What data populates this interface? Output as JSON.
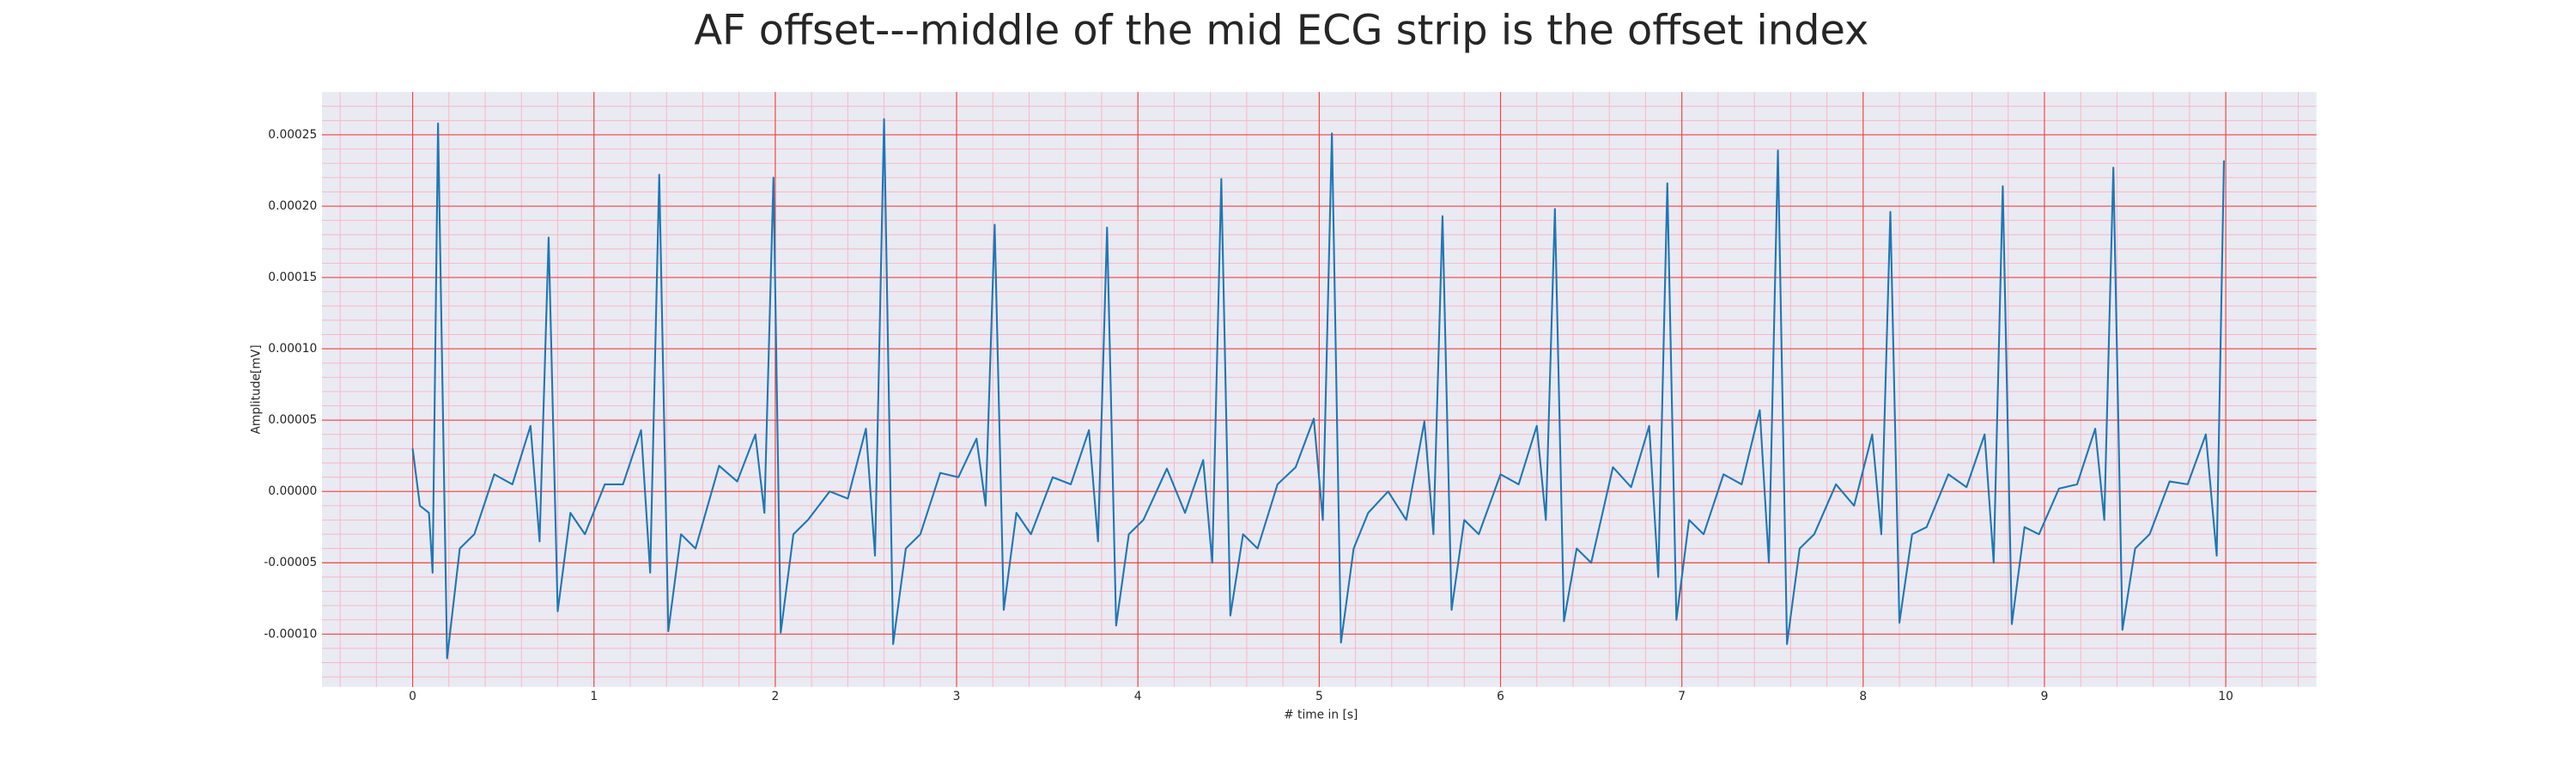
{
  "chart_data": {
    "type": "line",
    "title": "AF offset---middle of the mid ECG strip is the offset index",
    "x_label": "# time in [s]",
    "y_label": "Amplitude[mV]",
    "color": "#1f77b4",
    "grid": true,
    "xlim": [
      -0.5,
      10.5
    ],
    "ylim": [
      -0.000137,
      0.00028
    ],
    "xticks": [
      0,
      1,
      2,
      3,
      4,
      5,
      6,
      7,
      8,
      9,
      10
    ],
    "yticks": [
      {
        "value": -0.0001,
        "label": "-0.00010"
      },
      -5e-05,
      {
        "value": 0,
        "label": "0.00000"
      },
      5e-05,
      {
        "value": 0.0001,
        "label": "0.00010"
      },
      0.00015,
      {
        "value": 0.0002,
        "label": "0.00020"
      },
      0.00025
    ],
    "x": [
      0,
      0.04,
      0.09,
      0.11,
      0.14,
      0.19,
      0.26,
      0.34,
      0.45,
      0.55,
      0.65,
      0.7,
      0.75,
      0.8,
      0.87,
      0.95,
      1.06,
      1.16,
      1.26,
      1.31,
      1.36,
      1.41,
      1.48,
      1.56,
      1.69,
      1.79,
      1.89,
      1.94,
      1.99,
      2.03,
      2.1,
      2.18,
      2.3,
      2.4,
      2.5,
      2.55,
      2.6,
      2.65,
      2.72,
      2.8,
      2.91,
      3.01,
      3.11,
      3.16,
      3.21,
      3.26,
      3.33,
      3.41,
      3.53,
      3.63,
      3.73,
      3.78,
      3.83,
      3.88,
      3.95,
      4.03,
      4.16,
      4.26,
      4.36,
      4.41,
      4.46,
      4.51,
      4.58,
      4.66,
      4.77,
      4.87,
      4.97,
      5.02,
      5.07,
      5.12,
      5.19,
      5.27,
      5.38,
      5.48,
      5.58,
      5.63,
      5.68,
      5.73,
      5.8,
      5.88,
      6.0,
      6.1,
      6.2,
      6.25,
      6.3,
      6.35,
      6.42,
      6.5,
      6.62,
      6.72,
      6.82,
      6.87,
      6.92,
      6.97,
      7.04,
      7.12,
      7.23,
      7.33,
      7.43,
      7.48,
      7.53,
      7.58,
      7.65,
      7.73,
      7.85,
      7.95,
      8.05,
      8.1,
      8.15,
      8.2,
      8.27,
      8.35,
      8.47,
      8.57,
      8.67,
      8.72,
      8.77,
      8.82,
      8.89,
      8.97,
      9.08,
      9.18,
      9.28,
      9.33,
      9.38,
      9.43,
      9.5,
      9.58,
      9.69,
      9.79,
      9.89,
      9.95,
      9.99
    ],
    "values": [
      3e-05,
      -1e-05,
      -1.5e-05,
      -5.7e-05,
      0.000258,
      -0.000117,
      -4e-05,
      -3e-05,
      1.2e-05,
      5e-06,
      4.6e-05,
      -3.5e-05,
      0.000178,
      -8.4e-05,
      -1.5e-05,
      -3e-05,
      5e-06,
      5e-06,
      4.3e-05,
      -5.7e-05,
      0.000222,
      -9.8e-05,
      -3e-05,
      -4e-05,
      1.8e-05,
      7e-06,
      4e-05,
      -1.5e-05,
      0.00022,
      -9.9e-05,
      -3e-05,
      -2e-05,
      0,
      -5e-06,
      4.4e-05,
      -4.5e-05,
      0.000261,
      -0.000107,
      -4e-05,
      -3e-05,
      1.3e-05,
      1e-05,
      3.7e-05,
      -1e-05,
      0.000187,
      -8.3e-05,
      -1.5e-05,
      -3e-05,
      1e-05,
      5e-06,
      4.3e-05,
      -3.5e-05,
      0.000185,
      -9.4e-05,
      -3e-05,
      -2e-05,
      1.6e-05,
      -1.5e-05,
      2.2e-05,
      -5e-05,
      0.000219,
      -8.7e-05,
      -3e-05,
      -4e-05,
      5e-06,
      1.7e-05,
      5.1e-05,
      -2e-05,
      0.000251,
      -0.000106,
      -4e-05,
      -1.5e-05,
      0,
      -2e-05,
      4.9e-05,
      -3e-05,
      0.000193,
      -8.3e-05,
      -2e-05,
      -3e-05,
      1.2e-05,
      5e-06,
      4.6e-05,
      -2e-05,
      0.000198,
      -9.1e-05,
      -4e-05,
      -5e-05,
      1.7e-05,
      3e-06,
      4.6e-05,
      -6e-05,
      0.000216,
      -9e-05,
      -2e-05,
      -3e-05,
      1.2e-05,
      5e-06,
      5.7e-05,
      -5e-05,
      0.000239,
      -0.000107,
      -4e-05,
      -3e-05,
      5e-06,
      -1e-05,
      4e-05,
      -3e-05,
      0.000196,
      -9.2e-05,
      -3e-05,
      -2.5e-05,
      1.2e-05,
      3e-06,
      4e-05,
      -5e-05,
      0.000214,
      -9.3e-05,
      -2.5e-05,
      -3e-05,
      2e-06,
      5e-06,
      4.4e-05,
      -2e-05,
      0.000227,
      -9.7e-05,
      -4e-05,
      -3e-05,
      7e-06,
      5e-06,
      4e-05,
      -4.5e-05,
      0.000232
    ]
  }
}
